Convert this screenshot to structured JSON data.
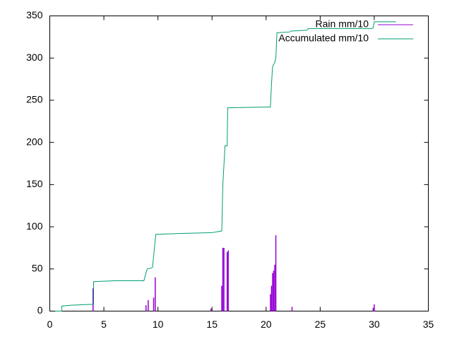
{
  "chart_data": {
    "type": "line",
    "xlim": [
      0,
      35
    ],
    "xticks": [
      0,
      5,
      10,
      15,
      20,
      25,
      30,
      35
    ],
    "ylim": [
      0,
      350
    ],
    "yticks": [
      0,
      50,
      100,
      150,
      200,
      250,
      300,
      350
    ],
    "legend": "top-right",
    "series": [
      {
        "name": "Rain mm/10",
        "color": "#9400d3",
        "style": "impulses",
        "x": [
          4.0,
          8.9,
          9.1,
          9.6,
          9.75,
          14.9,
          15.9,
          16.0,
          16.1,
          16.4,
          16.5,
          20.4,
          20.5,
          20.6,
          20.7,
          20.8,
          20.9,
          22.4,
          29.9,
          30.0
        ],
        "values": [
          27,
          7,
          13,
          16,
          40,
          3,
          30,
          75,
          75,
          70,
          72,
          20,
          30,
          45,
          48,
          55,
          90,
          5,
          4,
          8
        ]
      },
      {
        "name": "Accumulated mm/10",
        "color": "#009e73",
        "style": "lines",
        "x": [
          0.5,
          1.1,
          1.1,
          2,
          3.8,
          4.05,
          4.05,
          6,
          8.7,
          9.0,
          9.4,
          9.5,
          9.8,
          12,
          15,
          15.9,
          16.0,
          16.2,
          16.4,
          16.45,
          20.4,
          20.5,
          20.6,
          20.8,
          20.9,
          21.0,
          22.2,
          22.3,
          23.8,
          23.9,
          29.8,
          29.9,
          30.0,
          32
        ],
        "values": [
          0,
          0,
          6,
          7,
          8,
          8,
          35,
          36,
          36,
          50,
          51,
          52,
          91,
          92,
          93,
          95,
          150,
          196,
          196,
          241,
          242,
          270,
          290,
          295,
          300,
          330,
          331,
          332,
          333,
          335,
          335,
          336,
          343,
          343
        ]
      }
    ]
  }
}
